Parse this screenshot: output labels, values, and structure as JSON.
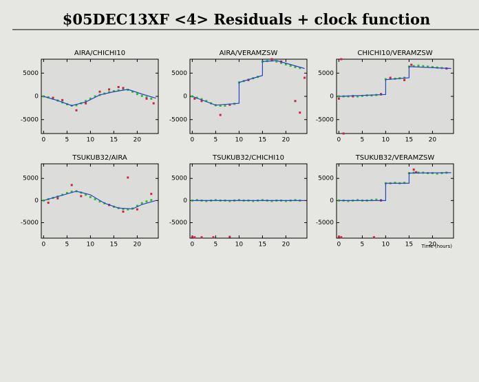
{
  "title": "$05DEC13XF <4> Residuals + clock function",
  "chart_data": [
    {
      "type": "scatter",
      "title": "AIRA/CHICHI10",
      "xlim": [
        -0.5,
        24.5
      ],
      "ylim": [
        -8000,
        8000
      ],
      "xticks": [
        0,
        5,
        10,
        15,
        20
      ],
      "yticks": [
        -5000,
        0,
        5000
      ],
      "series": [
        {
          "mode": "points",
          "color": "#33bb22",
          "x": [
            0,
            1,
            2,
            3,
            4,
            5,
            6,
            7,
            8,
            9,
            10,
            11,
            12,
            13,
            14,
            15,
            16,
            17,
            18,
            19,
            20,
            21,
            22,
            23
          ],
          "values": [
            0,
            -200,
            -500,
            -900,
            -1300,
            -1700,
            -2000,
            -1900,
            -1500,
            -1000,
            -500,
            0,
            300,
            600,
            900,
            1100,
            1300,
            1500,
            1400,
            1000,
            500,
            100,
            -200,
            -500
          ]
        },
        {
          "mode": "points",
          "color": "#cc2244",
          "x": [
            2,
            4,
            7,
            9,
            12,
            14,
            16,
            17,
            22,
            23.5
          ],
          "values": [
            -300,
            -800,
            -3000,
            -1500,
            1000,
            1500,
            2000,
            1800,
            -500,
            -1500
          ]
        },
        {
          "mode": "line",
          "color": "#2244cc",
          "x": [
            0,
            3,
            6,
            9,
            12,
            15,
            18,
            21,
            24
          ],
          "values": [
            0,
            -900,
            -2000,
            -1200,
            300,
            1000,
            1500,
            500,
            -400
          ]
        }
      ]
    },
    {
      "type": "scatter",
      "title": "AIRA/VERAMZSW",
      "xlim": [
        -0.5,
        24.5
      ],
      "ylim": [
        -8000,
        8000
      ],
      "xticks": [
        0,
        5,
        10,
        15,
        20
      ],
      "yticks": [
        -5000,
        0,
        5000
      ],
      "series": [
        {
          "mode": "points",
          "color": "#33bb22",
          "x": [
            0,
            1,
            2,
            3,
            4,
            5,
            6,
            7,
            8,
            9,
            10,
            11,
            12,
            13,
            14,
            15,
            16,
            17,
            18,
            19,
            20,
            21,
            22,
            23
          ],
          "values": [
            0,
            -300,
            -600,
            -1000,
            -1500,
            -1900,
            -2000,
            -2000,
            -1800,
            -1600,
            3000,
            3300,
            3600,
            3900,
            4200,
            7500,
            7600,
            7700,
            7500,
            7200,
            6900,
            6600,
            6300,
            6100
          ]
        },
        {
          "mode": "points",
          "color": "#cc2244",
          "x": [
            0.5,
            2,
            6,
            8,
            12,
            17,
            19,
            22,
            23,
            24
          ],
          "values": [
            -500,
            -1000,
            -4000,
            -1800,
            3500,
            8000,
            7500,
            -1000,
            -3500,
            4000
          ]
        },
        {
          "mode": "line",
          "color": "#2244cc",
          "x": [
            0,
            5,
            10,
            10,
            15,
            15,
            18,
            24
          ],
          "values": [
            0,
            -1900,
            -1500,
            3000,
            4500,
            7500,
            7700,
            6000
          ]
        }
      ]
    },
    {
      "type": "scatter",
      "title": "CHICHI10/VERAMZSW",
      "xlim": [
        -0.5,
        24.5
      ],
      "ylim": [
        -8000,
        8000
      ],
      "xticks": [
        0,
        5,
        10,
        15,
        20
      ],
      "yticks": [
        -5000,
        0,
        5000
      ],
      "series": [
        {
          "mode": "points",
          "color": "#33bb22",
          "x": [
            0,
            1,
            2,
            3,
            4,
            5,
            6,
            7,
            8,
            9,
            10,
            11,
            12,
            13,
            14,
            15,
            16,
            17,
            18,
            19,
            20,
            21,
            22,
            23
          ],
          "values": [
            0,
            0,
            0,
            100,
            0,
            100,
            200,
            200,
            300,
            400,
            3700,
            3800,
            3800,
            3900,
            4000,
            6400,
            6500,
            6600,
            6500,
            6400,
            6300,
            6200,
            6100,
            6000
          ]
        },
        {
          "mode": "points",
          "color": "#cc2244",
          "x": [
            0,
            0.5,
            1,
            3,
            9,
            11,
            14,
            15.5,
            23
          ],
          "values": [
            -500,
            8000,
            -8000,
            0,
            500,
            4000,
            3500,
            6800,
            6000
          ]
        },
        {
          "mode": "line",
          "color": "#2244cc",
          "x": [
            0,
            10,
            10,
            15,
            15,
            24
          ],
          "values": [
            0,
            400,
            3600,
            4000,
            6400,
            6000
          ]
        }
      ]
    },
    {
      "type": "scatter",
      "title": "TSUKUB32/AIRA",
      "xlim": [
        -0.5,
        24.5
      ],
      "ylim": [
        -8500,
        8300
      ],
      "xticks": [
        0,
        5,
        10,
        15,
        20
      ],
      "yticks": [
        -5000,
        0,
        5000
      ],
      "series": [
        {
          "mode": "points",
          "color": "#33bb22",
          "x": [
            0,
            1,
            2,
            3,
            4,
            5,
            6,
            7,
            8,
            9,
            10,
            11,
            12,
            13,
            14,
            15,
            16,
            17,
            18,
            19,
            20,
            21,
            22,
            23
          ],
          "values": [
            0,
            300,
            600,
            900,
            1300,
            1700,
            2000,
            2100,
            1800,
            1300,
            800,
            300,
            -200,
            -600,
            -1000,
            -1400,
            -1700,
            -1900,
            -2000,
            -1800,
            -1200,
            -600,
            -200,
            100
          ]
        },
        {
          "mode": "points",
          "color": "#cc2244",
          "x": [
            1,
            3,
            6,
            8,
            14,
            17,
            18,
            20,
            23
          ],
          "values": [
            -500,
            500,
            3500,
            1000,
            -1000,
            -2500,
            5200,
            -2000,
            1500
          ]
        },
        {
          "mode": "line",
          "color": "#2244cc",
          "x": [
            0,
            3,
            7,
            10,
            13,
            16,
            19,
            21,
            24
          ],
          "values": [
            0,
            900,
            2100,
            1300,
            -600,
            -1700,
            -1900,
            -900,
            0
          ]
        }
      ]
    },
    {
      "type": "scatter",
      "title": "TSUKUB32/CHICHI10",
      "xlim": [
        -0.5,
        24.5
      ],
      "ylim": [
        -8500,
        8300
      ],
      "xticks": [
        0,
        5,
        10,
        15,
        20
      ],
      "yticks": [
        -5000,
        0,
        5000
      ],
      "series": [
        {
          "mode": "points",
          "color": "#33bb22",
          "x": [
            0,
            1,
            2,
            3,
            4,
            5,
            6,
            7,
            8,
            9,
            10,
            11,
            12,
            13,
            14,
            15,
            16,
            17,
            18,
            19,
            20,
            21,
            22,
            23
          ],
          "values": [
            0,
            100,
            0,
            -100,
            0,
            100,
            0,
            0,
            -100,
            0,
            100,
            0,
            0,
            -100,
            0,
            100,
            0,
            -100,
            0,
            0,
            -100,
            0,
            100,
            0
          ]
        },
        {
          "mode": "points",
          "color": "#cc2244",
          "x": [
            0,
            0.5,
            2,
            4.5,
            8
          ],
          "values": [
            -8200,
            -8300,
            -8300,
            -8300,
            -8200
          ]
        },
        {
          "mode": "line",
          "color": "#2244cc",
          "x": [
            0,
            24
          ],
          "values": [
            0,
            0
          ]
        }
      ]
    },
    {
      "type": "scatter",
      "title": "TSUKUB32/VERAMZSW",
      "xlabel": "Time (hours)",
      "xlim": [
        -0.5,
        24.5
      ],
      "ylim": [
        -8500,
        8300
      ],
      "xticks": [
        0,
        5,
        10,
        15,
        20
      ],
      "yticks": [
        -5000,
        0,
        5000
      ],
      "series": [
        {
          "mode": "points",
          "color": "#33bb22",
          "x": [
            0,
            1,
            2,
            3,
            4,
            5,
            6,
            7,
            8,
            9,
            10,
            11,
            12,
            13,
            14,
            15,
            16,
            17,
            18,
            19,
            20,
            21,
            22,
            23
          ],
          "values": [
            0,
            0,
            -100,
            0,
            100,
            0,
            0,
            100,
            200,
            100,
            3900,
            3900,
            4000,
            3900,
            4000,
            6200,
            6300,
            6300,
            6300,
            6200,
            6200,
            6100,
            6200,
            6300
          ]
        },
        {
          "mode": "points",
          "color": "#cc2244",
          "x": [
            0,
            0.5,
            7.5,
            9,
            16,
            16.5
          ],
          "values": [
            -8200,
            -8300,
            -8300,
            0,
            7000,
            6400
          ]
        },
        {
          "mode": "line",
          "color": "#2244cc",
          "x": [
            0,
            10,
            10,
            15,
            15,
            24
          ],
          "values": [
            0,
            0,
            3900,
            3900,
            6200,
            6300
          ]
        }
      ]
    }
  ]
}
